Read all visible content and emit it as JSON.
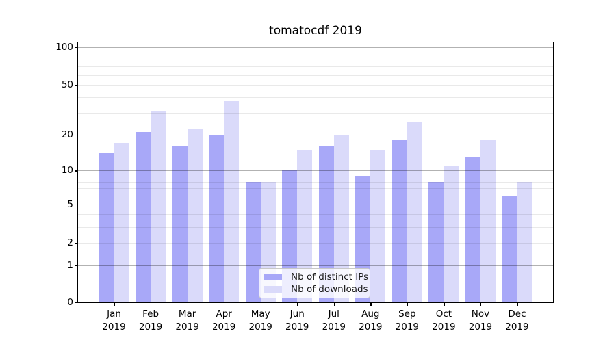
{
  "chart_data": {
    "type": "bar",
    "title": "tomatocdf 2019",
    "categories": [
      "Jan 2019",
      "Feb 2019",
      "Mar 2019",
      "Apr 2019",
      "May 2019",
      "Jun 2019",
      "Jul 2019",
      "Aug 2019",
      "Sep 2019",
      "Oct 2019",
      "Nov 2019",
      "Dec 2019"
    ],
    "series": [
      {
        "name": "Nb of distinct IPs",
        "color": "#a8a8f8",
        "values": [
          14,
          21,
          16,
          20,
          8,
          10,
          16,
          9,
          18,
          8,
          13,
          6
        ]
      },
      {
        "name": "Nb of downloads",
        "color": "#dadafa",
        "values": [
          17,
          31,
          22,
          37,
          8,
          15,
          20,
          15,
          25,
          11,
          18,
          8
        ]
      }
    ],
    "xlabel": "",
    "ylabel": "",
    "yscale": "log10(1+y)",
    "yticks": [
      0,
      1,
      2,
      5,
      10,
      20,
      50,
      100
    ],
    "ytick_labels": [
      "0",
      "1",
      "2",
      "5",
      "10",
      "20",
      "50",
      "100"
    ],
    "major_gridlines": [
      1,
      10,
      100
    ],
    "minor_gridlines": [
      2,
      3,
      4,
      5,
      6,
      7,
      8,
      9,
      20,
      30,
      40,
      50,
      60,
      70,
      80,
      90
    ],
    "ylim": [
      0,
      110
    ],
    "grid": "on",
    "legend": {
      "position": "lower center",
      "entries": [
        "Nb of distinct IPs",
        "Nb of downloads"
      ]
    }
  }
}
